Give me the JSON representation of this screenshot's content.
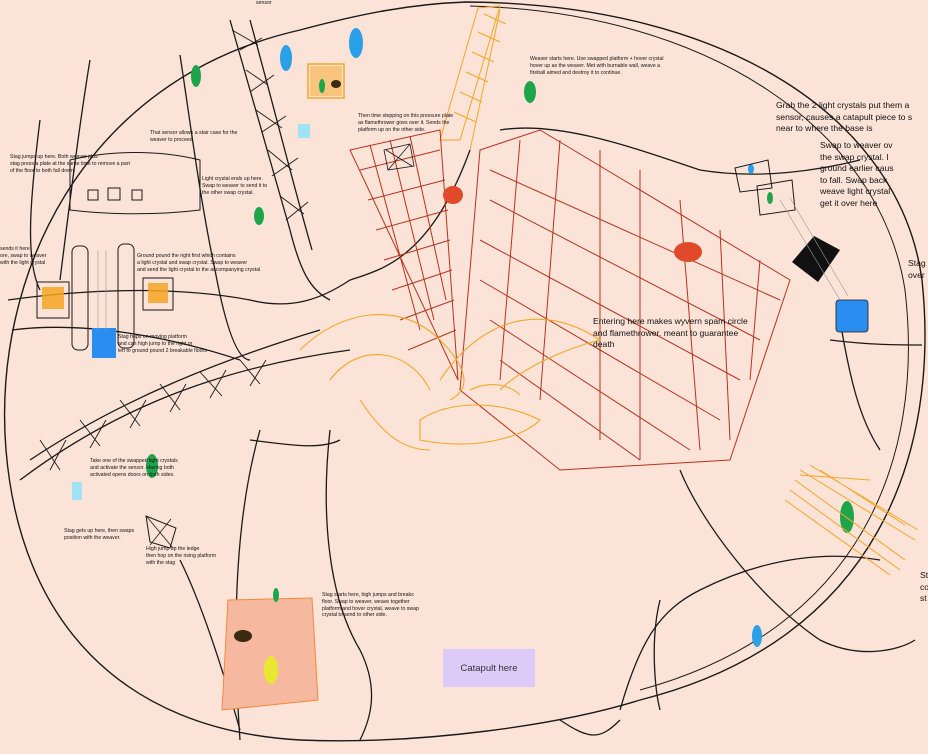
{
  "notes": {
    "sensor_top": "sensor",
    "stair_sensor": "That sensor allows a stair case for the\nweaver to proceed",
    "stag_jumps": "Stag jumps up here.  Both weaver plus\nstag press a plate at the same time to remove a part\nof the floor to both fall down.",
    "light_crystal_ends": "Light crystal ends up here.\nSwap to weaver to send it to\nthe other swap crystal.",
    "sends_it_here": "sends it here\nore, swap to weaver\nwith the light crystal",
    "ground_pound": "Ground pound the right first which contains\na light crystal and swap crystal.  Swap to weaver\nand send the light crystal to the accompanying crystal",
    "stag_hops": "Stag hops on moving platform\nand can high jump to the right or\nleft to ground pound 2 breakable floors",
    "take_crystal": "Take one of the swapped light crystals\nand activate the sensor. Having both\nactivated opens doors on both sides.",
    "stag_gets_up": "Stag gets up here, then swaps\nposition with the weaver.",
    "high_jump": "High jump up the ledge\nthen hop on the rising platform\nwith the stag",
    "stag_starts": "Stag starts here, high jumps and breaks\nfloor.  Swap to weaver, weave together\nplatform and hover crystal, weave to swap\ncrystal to send to other side.",
    "weaver_starts": "Weaver starts here.  Use swapped platform + hover crystal\nhover up as the weaver.  Met with burnable wall, weave a\nfireball aimed and destroy it to continue.",
    "time_stepping": "Then time stepping on this pressure plate\nas flamethrower goes over it.  Sends the\nplatform up on the other side.",
    "grab_crystals": "Grab the 2 light crystals put them a\nsensor, causes a catapult piece to s\nnear to where the base is",
    "swap_weaver": "Swap to weaver ov\nthe swap crystal.  I\nground earlier caus\nto fall.  Swap back\nweave light crystal\nget it over here",
    "stag_over": "Stag\nover",
    "st_co": "St\nco\nst",
    "entering": "Entering here makes wyvern spam circle\nand flamethrower.  meant to guarantee\ndeath",
    "catapult": "Catapult here"
  },
  "colors": {
    "background": "#fce3d8",
    "line": "#1a1a1a",
    "grid": "#b8321e",
    "wyvern": "#f5a623",
    "sticky": "#dccbf6"
  }
}
